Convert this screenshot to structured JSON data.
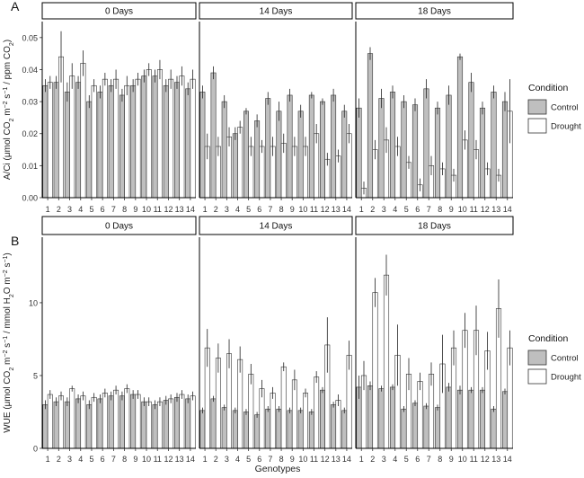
{
  "chart_data": [
    {
      "panel_label": "A",
      "type": "bar",
      "facets": [
        "0 Days",
        "14 Days",
        "18 Days"
      ],
      "categories": [
        "1",
        "2",
        "3",
        "4",
        "5",
        "6",
        "7",
        "8",
        "9",
        "10",
        "11",
        "12",
        "13",
        "14"
      ],
      "ylabel": "A/Ci (μmol CO2 m−2 s−1 / ppm CO2)",
      "ylabel_parts": [
        "A/Ci (",
        "μ",
        "mol CO",
        "2",
        " m",
        "−2",
        " s",
        "−1",
        " / ppm CO",
        "2",
        ")"
      ],
      "ylim": [
        0,
        0.055
      ],
      "yticks": [
        "0.00",
        "0.01",
        "0.02",
        "0.03",
        "0.04",
        "0.05"
      ],
      "ytick_values": [
        0,
        0.01,
        0.02,
        0.03,
        0.04,
        0.05
      ],
      "series": [
        {
          "name": "Control",
          "color": "#bfbfbf",
          "values": [
            [
              0.035,
              0.036,
              0.033,
              0.036,
              0.03,
              0.033,
              0.035,
              0.032,
              0.035,
              0.038,
              0.038,
              0.035,
              0.036,
              0.034
            ],
            [
              0.033,
              0.039,
              0.03,
              0.02,
              0.027,
              0.024,
              0.031,
              0.027,
              0.032,
              0.027,
              0.032,
              0.03,
              0.032,
              0.027
            ],
            [
              0.028,
              0.045,
              0.031,
              0.033,
              0.03,
              0.029,
              0.034,
              0.028,
              0.032,
              0.044,
              0.036,
              0.028,
              0.033,
              0.03
            ]
          ],
          "errors": [
            [
              0.002,
              0.002,
              0.003,
              0.002,
              0.002,
              0.002,
              0.002,
              0.002,
              0.002,
              0.002,
              0.002,
              0.002,
              0.002,
              0.002
            ],
            [
              0.002,
              0.002,
              0.002,
              0.002,
              0.001,
              0.002,
              0.002,
              0.003,
              0.002,
              0.002,
              0.001,
              0.001,
              0.002,
              0.002
            ],
            [
              0.003,
              0.002,
              0.003,
              0.002,
              0.002,
              0.002,
              0.003,
              0.002,
              0.003,
              0.001,
              0.003,
              0.002,
              0.002,
              0.003
            ]
          ]
        },
        {
          "name": "Drought",
          "color": "#ffffff",
          "values": [
            [
              0.036,
              0.044,
              0.038,
              0.042,
              0.035,
              0.037,
              0.037,
              0.035,
              0.037,
              0.04,
              0.04,
              0.037,
              0.038,
              0.037
            ],
            [
              0.016,
              0.016,
              0.019,
              0.022,
              0.016,
              0.016,
              0.016,
              0.017,
              0.016,
              0.016,
              0.02,
              0.012,
              0.013,
              0.02
            ],
            [
              0.003,
              0.015,
              0.018,
              0.016,
              0.011,
              0.004,
              0.01,
              0.009,
              0.007,
              0.018,
              0.015,
              0.009,
              0.007,
              0.027
            ]
          ],
          "errors": [
            [
              0.002,
              0.008,
              0.004,
              0.004,
              0.002,
              0.002,
              0.003,
              0.003,
              0.002,
              0.002,
              0.003,
              0.003,
              0.003,
              0.003
            ],
            [
              0.004,
              0.003,
              0.003,
              0.002,
              0.003,
              0.002,
              0.003,
              0.003,
              0.003,
              0.003,
              0.003,
              0.002,
              0.002,
              0.003
            ],
            [
              0.002,
              0.003,
              0.004,
              0.003,
              0.002,
              0.002,
              0.003,
              0.002,
              0.002,
              0.003,
              0.003,
              0.002,
              0.002,
              0.01
            ]
          ]
        }
      ],
      "legend_title": "Condition",
      "legend_labels": [
        "Control",
        "Drought"
      ]
    },
    {
      "panel_label": "B",
      "type": "bar",
      "facets": [
        "0 Days",
        "14 Days",
        "18 Days"
      ],
      "categories": [
        "1",
        "2",
        "3",
        "4",
        "5",
        "6",
        "7",
        "8",
        "9",
        "10",
        "11",
        "12",
        "13",
        "14"
      ],
      "xlabel": "Genotypes",
      "ylabel": "WUE (μmol CO2 m−2 s−1 / mmol H2O m−2 s−1)",
      "ylabel_parts": [
        "WUE (",
        "μ",
        "mol CO",
        "2",
        " m",
        "−2",
        " s",
        "−1",
        " / mmol H",
        "2",
        "O m",
        "−2",
        " s",
        "−1",
        ")"
      ],
      "ylim": [
        0,
        14.5
      ],
      "yticks": [
        "0",
        "5",
        "10"
      ],
      "ytick_values": [
        0,
        5,
        10
      ],
      "series": [
        {
          "name": "Control",
          "color": "#bfbfbf",
          "values": [
            [
              3.0,
              3.2,
              3.2,
              3.4,
              3.0,
              3.4,
              3.6,
              3.6,
              3.7,
              3.2,
              3.0,
              3.3,
              3.5,
              3.4
            ],
            [
              2.6,
              3.4,
              2.8,
              2.6,
              2.5,
              2.3,
              2.7,
              2.7,
              2.6,
              2.6,
              2.5,
              4.0,
              3.0,
              2.6
            ],
            [
              4.2,
              4.3,
              4.1,
              4.2,
              2.7,
              3.1,
              2.9,
              2.8,
              4.2,
              4.0,
              4.0,
              4.0,
              2.7,
              3.9
            ]
          ],
          "errors": [
            [
              0.3,
              0.3,
              0.3,
              0.3,
              0.3,
              0.3,
              0.3,
              0.3,
              0.3,
              0.3,
              0.3,
              0.3,
              0.3,
              0.3
            ],
            [
              0.2,
              0.2,
              0.2,
              0.2,
              0.2,
              0.2,
              0.2,
              0.2,
              0.2,
              0.2,
              0.2,
              0.2,
              0.2,
              0.2
            ],
            [
              0.8,
              0.3,
              0.2,
              0.2,
              0.2,
              0.2,
              0.2,
              0.2,
              0.3,
              0.3,
              0.2,
              0.2,
              0.2,
              0.2
            ]
          ]
        },
        {
          "name": "Drought",
          "color": "#ffffff",
          "values": [
            [
              3.7,
              3.6,
              4.1,
              3.6,
              3.5,
              3.8,
              4.0,
              4.1,
              3.7,
              3.2,
              3.2,
              3.4,
              3.7,
              3.6
            ],
            [
              6.9,
              6.2,
              6.5,
              6.1,
              5.1,
              4.1,
              3.8,
              5.6,
              4.7,
              3.8,
              4.9,
              7.1,
              3.3,
              6.4
            ],
            [
              5.0,
              10.7,
              11.9,
              6.4,
              5.1,
              4.6,
              5.1,
              5.8,
              6.9,
              8.1,
              8.1,
              6.7,
              9.6,
              6.9
            ]
          ],
          "errors": [
            [
              0.3,
              0.3,
              0.2,
              0.3,
              0.3,
              0.3,
              0.3,
              0.3,
              0.3,
              0.3,
              0.3,
              0.3,
              0.3,
              0.3
            ],
            [
              1.3,
              1.0,
              1.0,
              0.9,
              0.7,
              0.6,
              0.4,
              0.3,
              0.7,
              0.3,
              0.4,
              1.9,
              0.4,
              1.0
            ],
            [
              1.0,
              1.0,
              1.4,
              2.1,
              1.1,
              0.6,
              0.8,
              2.0,
              1.2,
              1.2,
              1.7,
              1.3,
              2.0,
              1.2
            ]
          ]
        }
      ],
      "legend_title": "Condition",
      "legend_labels": [
        "Control",
        "Drought"
      ]
    }
  ]
}
